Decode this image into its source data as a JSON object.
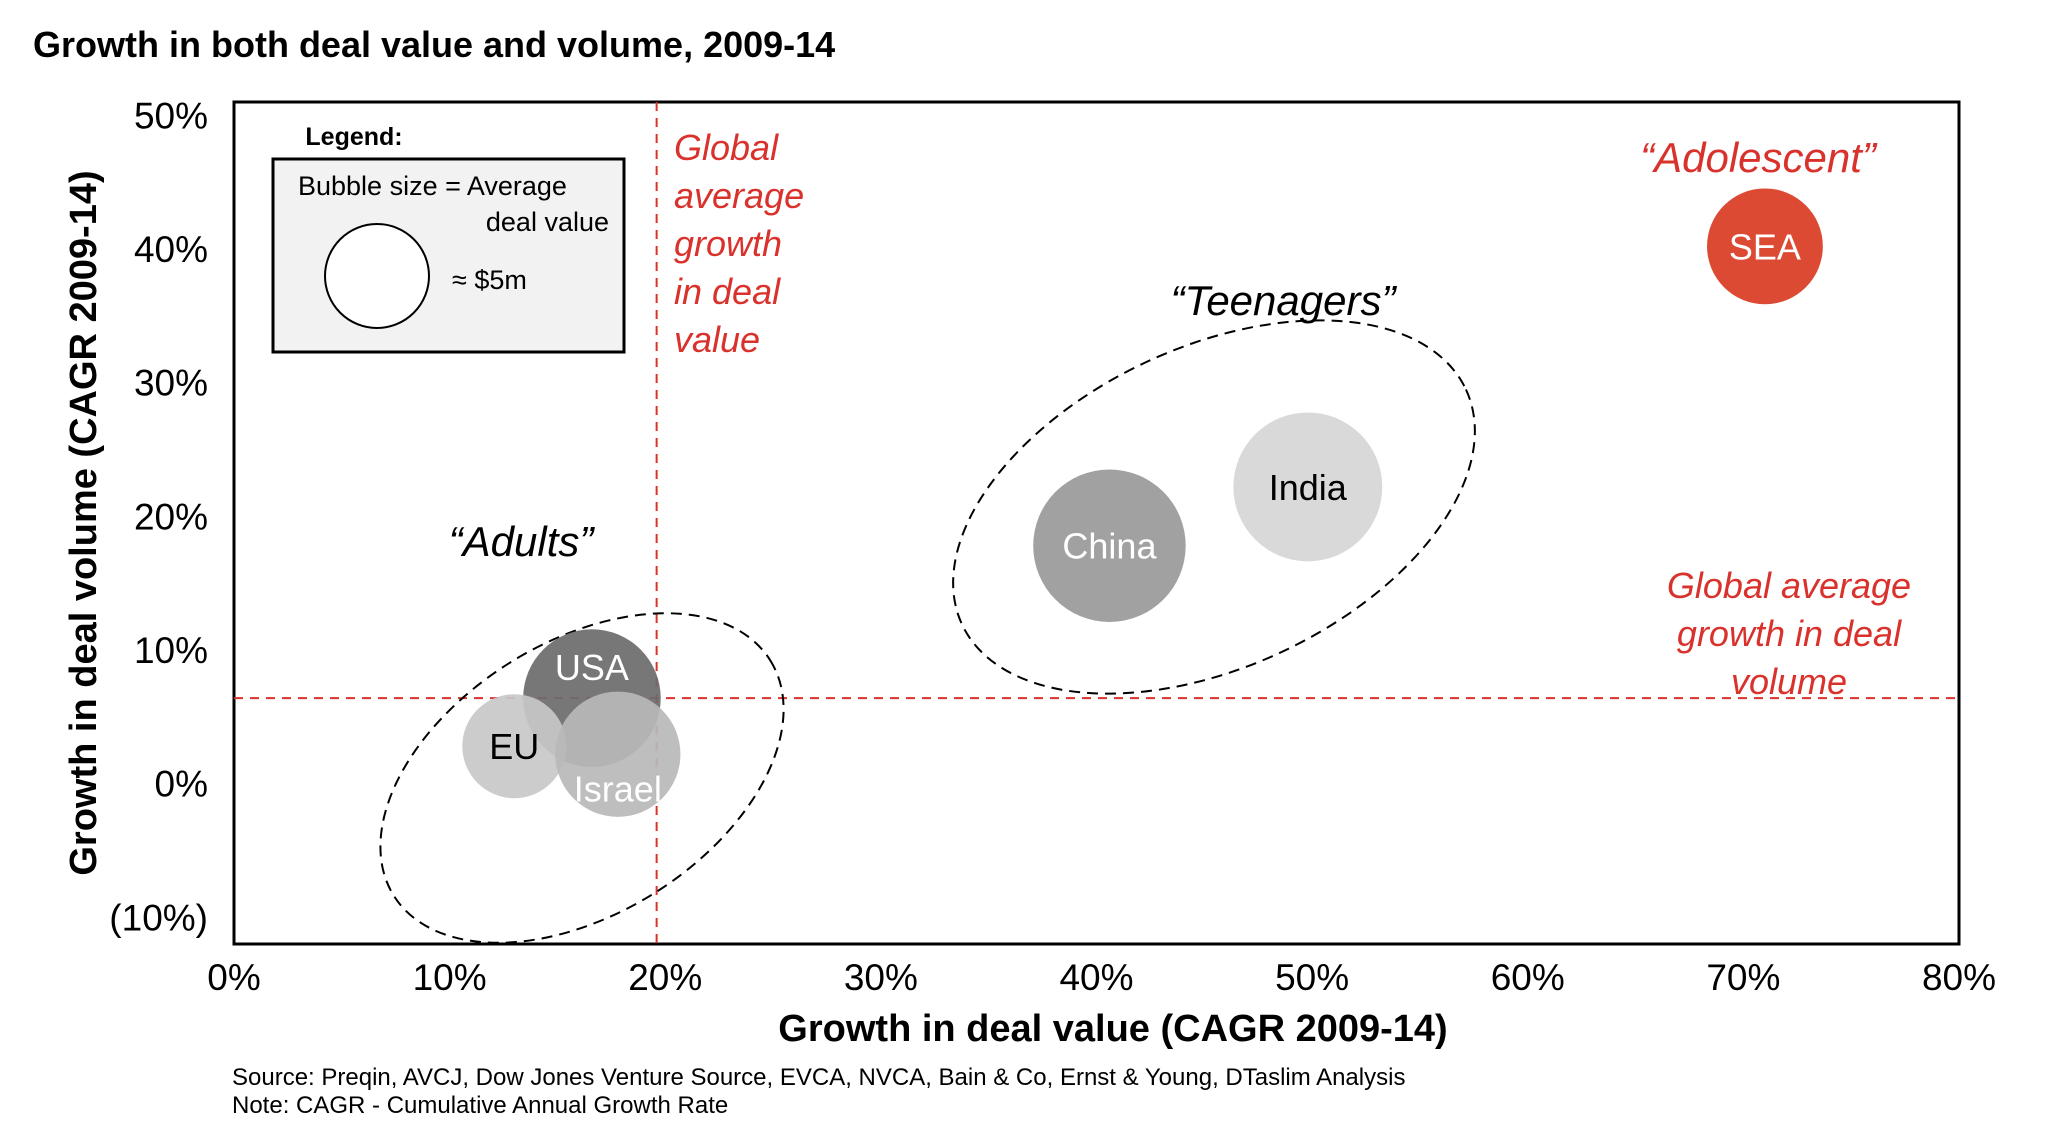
{
  "chart_data": {
    "type": "scatter",
    "title": "Growth in both deal value and volume, 2009-14",
    "xlabel": "Growth in deal value (CAGR 2009-14)",
    "ylabel": "Growth in deal volume (CAGR 2009-14)",
    "xlim": [
      0,
      80
    ],
    "ylim": [
      -12,
      51
    ],
    "x_ticks": [
      "0%",
      "10%",
      "20%",
      "30%",
      "40%",
      "50%",
      "60%",
      "70%",
      "80%"
    ],
    "x_tick_values": [
      0,
      10,
      20,
      30,
      40,
      50,
      60,
      70,
      80
    ],
    "y_ticks": [
      "50%",
      "40%",
      "30%",
      "20%",
      "10%",
      "0%",
      "(10%)"
    ],
    "y_tick_values": [
      50,
      40,
      30,
      20,
      10,
      0,
      -10
    ],
    "bubble_size_meaning": "Average deal value",
    "series": [
      {
        "name": "USA",
        "x": 16.6,
        "y": 6.4,
        "size": 1.75,
        "color": "#6b6b6b",
        "label_color": "#ffffff"
      },
      {
        "name": "EU",
        "x": 13.0,
        "y": 2.8,
        "size": 1.0,
        "color": "#c8c8c8",
        "label_color": "#000000"
      },
      {
        "name": "Israel",
        "x": 17.8,
        "y": 2.2,
        "size": 1.45,
        "color": "#b8b8b8",
        "label_color": "#ffffff"
      },
      {
        "name": "China",
        "x": 40.6,
        "y": 17.8,
        "size": 2.15,
        "color": "#999999",
        "label_color": "#ffffff"
      },
      {
        "name": "India",
        "x": 49.8,
        "y": 22.2,
        "size": 2.05,
        "color": "#d6d6d6",
        "label_color": "#000000"
      },
      {
        "name": "SEA",
        "x": 71.0,
        "y": 40.2,
        "size": 1.24,
        "color": "#dd4a33",
        "label_color": "#ffffff"
      }
    ],
    "groups": [
      {
        "label": "“Adults”",
        "members": [
          "USA",
          "EU",
          "Israel"
        ]
      },
      {
        "label": "“Teenagers”",
        "members": [
          "China",
          "India"
        ]
      },
      {
        "label": "“Adolescent”",
        "members": [
          "SEA"
        ]
      }
    ],
    "reference_lines": [
      {
        "axis": "x",
        "value": 19.6,
        "label": [
          "Global",
          "average",
          "growth",
          "in deal",
          "value"
        ],
        "color": "#d9312b"
      },
      {
        "axis": "y",
        "value": 6.4,
        "label": [
          "Global average",
          "growth in deal",
          "volume"
        ],
        "color": "#d9312b"
      }
    ]
  },
  "legend": {
    "title": "Legend:",
    "line1": "Bubble size = Average",
    "line2": "deal value",
    "example_value": "≈ $5m"
  },
  "source_note": "Source: Preqin, AVCJ, Dow Jones Venture Source, EVCA, NVCA, Bain & Co, Ernst & Young, DTaslim Analysis",
  "definition_note": "Note: CAGR - Cumulative Annual Growth Rate"
}
